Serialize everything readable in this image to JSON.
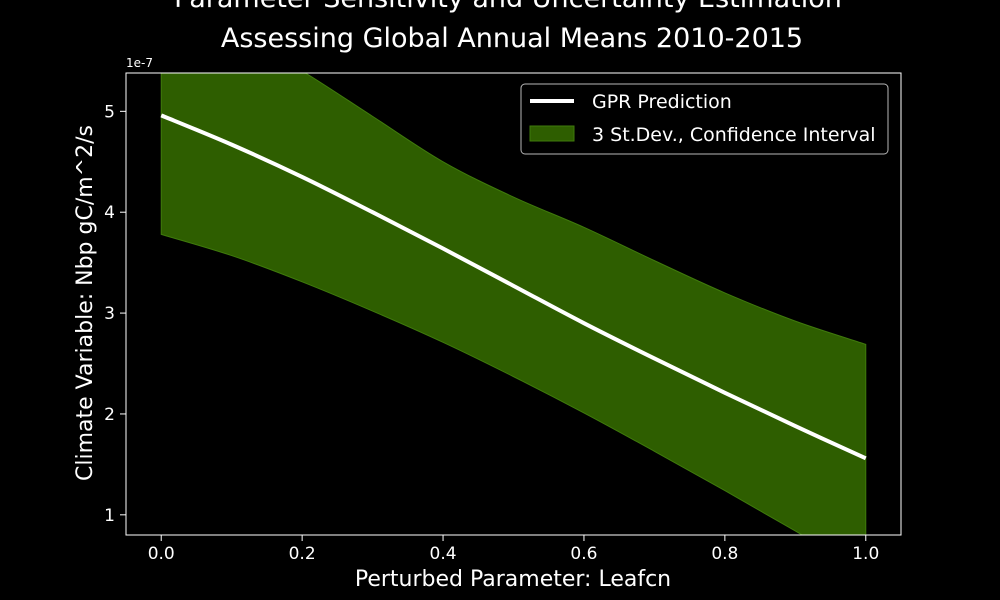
{
  "chart_data": {
    "type": "line",
    "title_line1": "Parameter Sensitivity and Uncertainty Estimation",
    "title_line2": "Assessing Global Annual Means 2010-2015",
    "xlabel": "Perturbed Parameter: Leafcn",
    "ylabel": "Climate Variable: Nbp gC/m^2/s",
    "y_offset_label": "1e-7",
    "xlim": [
      -0.05,
      1.05
    ],
    "ylim": [
      0.8,
      5.38
    ],
    "xticks": [
      0.0,
      0.2,
      0.4,
      0.6,
      0.8,
      1.0
    ],
    "xtick_labels": [
      "0.0",
      "0.2",
      "0.4",
      "0.6",
      "0.8",
      "1.0"
    ],
    "yticks": [
      1,
      2,
      3,
      4,
      5
    ],
    "ytick_labels": [
      "1",
      "2",
      "3",
      "4",
      "5"
    ],
    "grid": false,
    "legend_position": "top-right",
    "x": [
      0.0,
      0.1,
      0.2,
      0.3,
      0.4,
      0.5,
      0.6,
      0.7,
      0.8,
      0.9,
      1.0
    ],
    "series": [
      {
        "name": "GPR Prediction",
        "kind": "line",
        "color": "#ffffff",
        "values": [
          4.96,
          4.67,
          4.35,
          4.0,
          3.64,
          3.27,
          2.9,
          2.55,
          2.21,
          1.88,
          1.56
        ]
      },
      {
        "name": "3 St.Dev., Confidence Interval",
        "kind": "band",
        "color": "#2e5e00",
        "edge_color": "#3f7a0c",
        "upper": [
          6.2,
          5.8,
          5.4,
          4.95,
          4.5,
          4.15,
          3.85,
          3.52,
          3.2,
          2.92,
          2.69
        ],
        "lower": [
          3.78,
          3.57,
          3.31,
          3.02,
          2.71,
          2.37,
          2.01,
          1.63,
          1.24,
          0.84,
          0.43
        ]
      }
    ]
  },
  "colors": {
    "background": "#000000",
    "foreground": "#ffffff"
  }
}
